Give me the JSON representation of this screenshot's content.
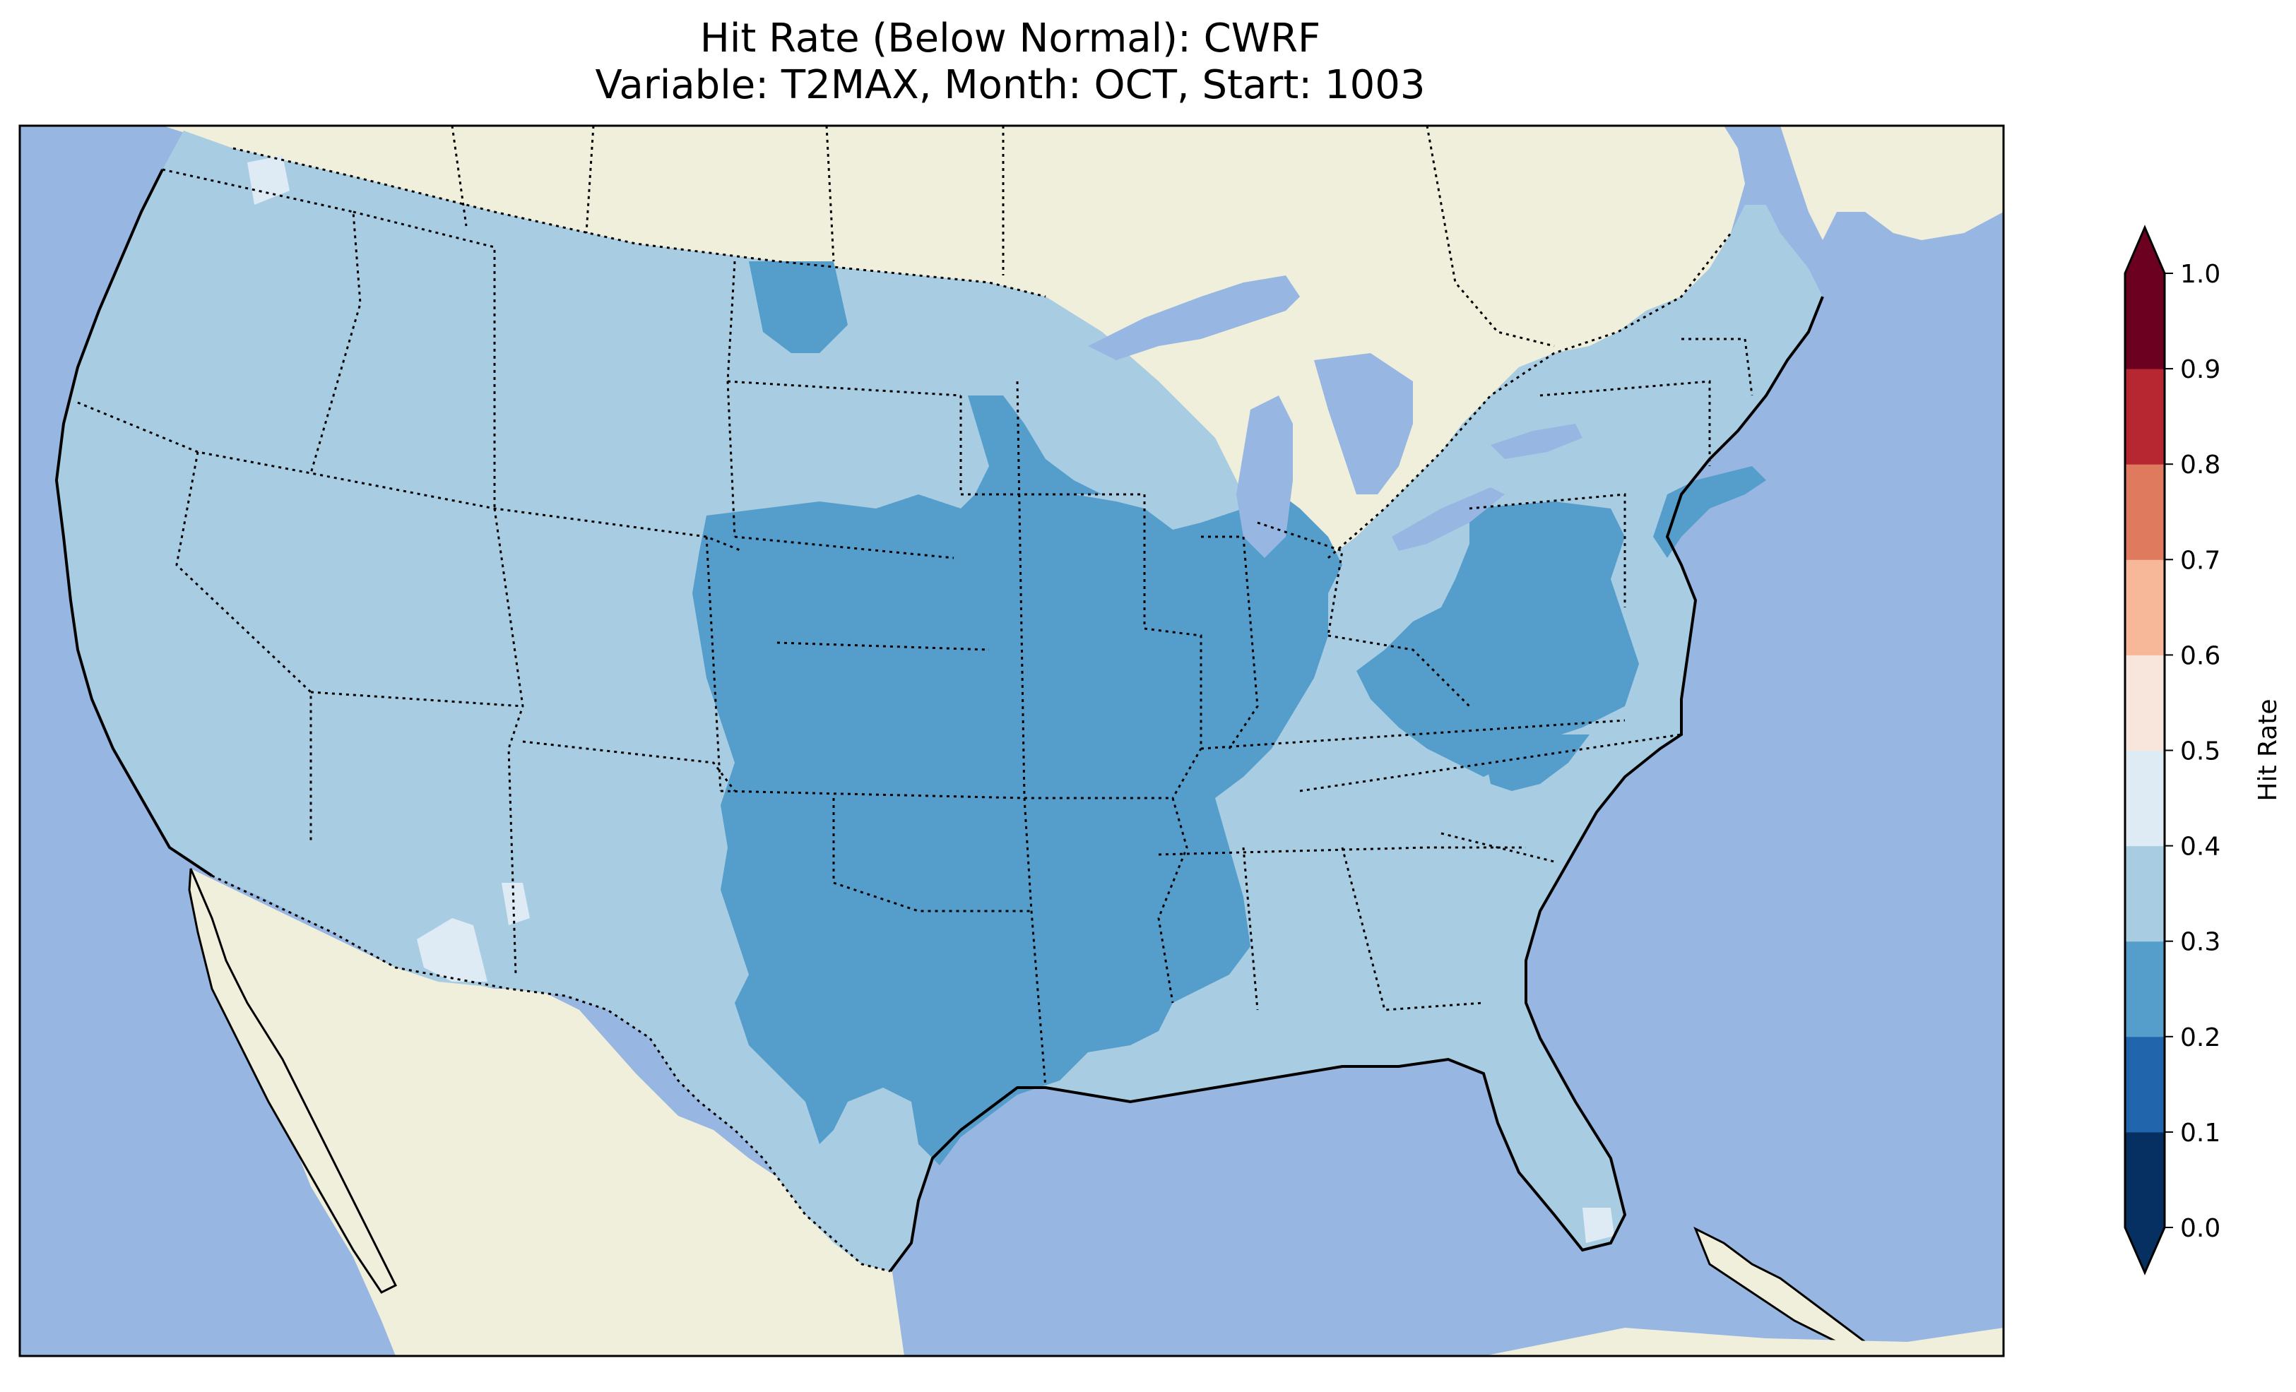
{
  "title": {
    "line1": "Hit Rate (Below Normal): CWRF",
    "line2": "Variable: T2MAX, Month: OCT, Start: 1003"
  },
  "map": {
    "ocean_color": "#97b6e1",
    "land_color": "#efefdb",
    "border_color": "#000000"
  },
  "colorbar": {
    "label": "Hit Rate",
    "ticks": [
      "0.0",
      "0.1",
      "0.2",
      "0.3",
      "0.4",
      "0.5",
      "0.6",
      "0.7",
      "0.8",
      "0.9",
      "1.0"
    ],
    "colors": [
      "#053061",
      "#2166ac",
      "#4393c3",
      "#92c5de",
      "#d1e5f0",
      "#f7f7f7",
      "#fddbc7",
      "#f4a582",
      "#d6604d",
      "#b2182b"
    ],
    "under_color": "#053061",
    "over_color": "#67001f",
    "bin_colors_shown": [
      "#053061",
      "#2166ac",
      "#559ecc",
      "#a8cde3",
      "#deeaf4",
      "#f8e6dc",
      "#f6b898",
      "#e07a5f",
      "#b72732",
      "#6b0020"
    ]
  },
  "regions": [
    {
      "name": "background-conus",
      "value_bin": "0.3-0.4",
      "color": "#a8cde3"
    },
    {
      "name": "central-plains-low",
      "value_bin": "0.2-0.3",
      "color": "#559ecc"
    },
    {
      "name": "west-isolated-high",
      "value_bin": "0.4-0.5",
      "color": "#deeaf4"
    }
  ]
}
